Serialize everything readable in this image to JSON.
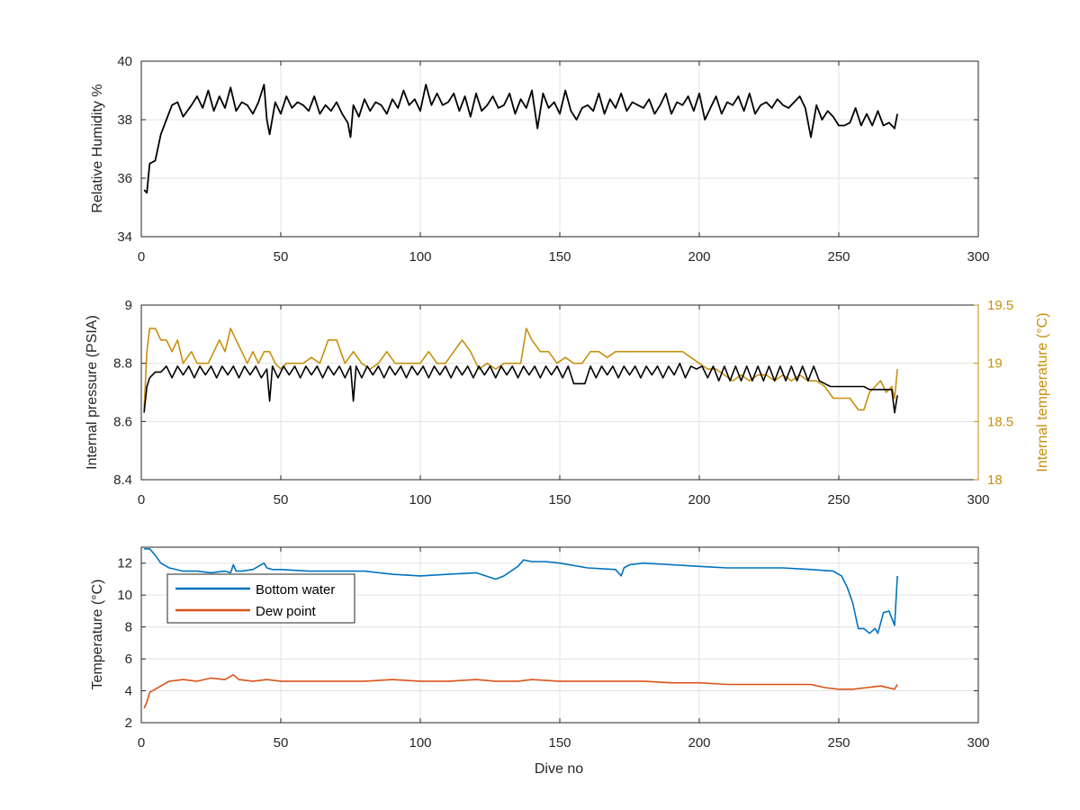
{
  "chart_data": [
    {
      "type": "line",
      "title": "",
      "xlabel": "",
      "ylabel": "Relative Humidity %",
      "xlim": [
        0,
        300
      ],
      "ylim": [
        34,
        40
      ],
      "xticks": [
        0,
        50,
        100,
        150,
        200,
        250,
        300
      ],
      "yticks": [
        34,
        36,
        38,
        40
      ],
      "grid": true,
      "series": [
        {
          "color": "#000000",
          "x": [
            1,
            2,
            3,
            5,
            7,
            9,
            11,
            13,
            15,
            18,
            20,
            22,
            24,
            26,
            28,
            30,
            32,
            34,
            36,
            38,
            40,
            42,
            44,
            45,
            46,
            48,
            50,
            52,
            54,
            56,
            58,
            60,
            62,
            64,
            66,
            68,
            70,
            72,
            74,
            75,
            76,
            78,
            80,
            82,
            84,
            86,
            88,
            90,
            92,
            94,
            96,
            98,
            100,
            102,
            104,
            106,
            108,
            110,
            112,
            114,
            116,
            118,
            120,
            122,
            124,
            126,
            128,
            130,
            132,
            134,
            136,
            138,
            140,
            142,
            144,
            146,
            148,
            150,
            152,
            154,
            156,
            158,
            160,
            162,
            164,
            166,
            168,
            170,
            172,
            174,
            176,
            178,
            180,
            182,
            184,
            186,
            188,
            190,
            192,
            194,
            196,
            198,
            200,
            202,
            204,
            206,
            208,
            210,
            212,
            214,
            216,
            218,
            220,
            222,
            224,
            226,
            228,
            230,
            232,
            234,
            236,
            238,
            240,
            242,
            244,
            246,
            248,
            250,
            252,
            254,
            256,
            258,
            260,
            262,
            264,
            266,
            268,
            270,
            271
          ],
          "y": [
            35.6,
            35.5,
            36.5,
            36.6,
            37.5,
            38.0,
            38.5,
            38.6,
            38.1,
            38.5,
            38.8,
            38.4,
            39.0,
            38.3,
            38.8,
            38.4,
            39.1,
            38.3,
            38.6,
            38.5,
            38.2,
            38.6,
            39.2,
            38.0,
            37.5,
            38.6,
            38.2,
            38.8,
            38.4,
            38.6,
            38.5,
            38.3,
            38.8,
            38.2,
            38.5,
            38.3,
            38.6,
            38.2,
            37.9,
            37.4,
            38.5,
            38.1,
            38.7,
            38.3,
            38.6,
            38.5,
            38.2,
            38.7,
            38.4,
            39.0,
            38.5,
            38.7,
            38.3,
            39.2,
            38.5,
            38.9,
            38.5,
            38.6,
            38.9,
            38.3,
            38.8,
            38.1,
            38.9,
            38.3,
            38.5,
            38.8,
            38.4,
            38.5,
            38.9,
            38.2,
            38.7,
            38.4,
            39.0,
            37.7,
            38.9,
            38.4,
            38.6,
            38.2,
            39.0,
            38.3,
            38.0,
            38.4,
            38.5,
            38.3,
            38.9,
            38.2,
            38.7,
            38.4,
            38.9,
            38.3,
            38.6,
            38.5,
            38.4,
            38.7,
            38.2,
            38.5,
            38.9,
            38.2,
            38.6,
            38.5,
            38.8,
            38.3,
            38.9,
            38.0,
            38.4,
            38.8,
            38.2,
            38.6,
            38.5,
            38.8,
            38.3,
            38.9,
            38.2,
            38.5,
            38.6,
            38.4,
            38.7,
            38.5,
            38.4,
            38.6,
            38.8,
            38.4,
            37.4,
            38.5,
            38.0,
            38.3,
            38.1,
            37.8,
            37.8,
            37.9,
            38.4,
            37.8,
            38.2,
            37.8,
            38.3,
            37.8,
            37.9,
            37.7,
            38.2
          ]
        }
      ]
    },
    {
      "type": "line",
      "title": "",
      "xlabel": "",
      "ylabel": "Internal pressure (PSIA)",
      "ylabel_right": "Internal temperature (°C)",
      "xlim": [
        0,
        300
      ],
      "ylim": [
        8.4,
        9
      ],
      "ylim_right": [
        18,
        19.5
      ],
      "xticks": [
        0,
        50,
        100,
        150,
        200,
        250,
        300
      ],
      "yticks": [
        8.4,
        8.6,
        8.8,
        9
      ],
      "yticks_right": [
        18,
        18.5,
        19,
        19.5
      ],
      "yticklabels_right": [
        "18",
        "18.5",
        "19",
        "19.5"
      ],
      "grid": true,
      "series": [
        {
          "axis": "right",
          "color": "#C7900E",
          "x": [
            1,
            2,
            3,
            5,
            7,
            9,
            11,
            13,
            15,
            18,
            20,
            22,
            24,
            26,
            28,
            30,
            32,
            34,
            36,
            38,
            40,
            42,
            44,
            46,
            48,
            50,
            52,
            55,
            58,
            61,
            64,
            67,
            70,
            73,
            76,
            79,
            82,
            85,
            88,
            91,
            94,
            97,
            100,
            103,
            106,
            109,
            112,
            115,
            118,
            121,
            124,
            127,
            130,
            133,
            136,
            138,
            140,
            143,
            146,
            149,
            152,
            155,
            158,
            161,
            164,
            167,
            170,
            173,
            176,
            179,
            182,
            185,
            188,
            191,
            194,
            197,
            200,
            203,
            206,
            209,
            212,
            215,
            218,
            221,
            224,
            227,
            230,
            233,
            236,
            239,
            242,
            245,
            248,
            251,
            254,
            257,
            259,
            261,
            263,
            265,
            267,
            269,
            270,
            271
          ],
          "y": [
            18.6,
            19.1,
            19.3,
            19.3,
            19.2,
            19.2,
            19.1,
            19.2,
            19.0,
            19.1,
            19.0,
            19.0,
            19.0,
            19.1,
            19.2,
            19.1,
            19.3,
            19.2,
            19.1,
            19.0,
            19.1,
            19.0,
            19.1,
            19.1,
            19.0,
            18.95,
            19.0,
            19.0,
            19.0,
            19.05,
            19.0,
            19.2,
            19.2,
            19.0,
            19.1,
            19.0,
            18.95,
            19.0,
            19.1,
            19.0,
            19.0,
            19.0,
            19.0,
            19.1,
            19.0,
            19.0,
            19.1,
            19.2,
            19.1,
            18.95,
            19.0,
            18.95,
            19.0,
            19.0,
            19.0,
            19.3,
            19.2,
            19.1,
            19.1,
            19.0,
            19.05,
            19.0,
            19.0,
            19.1,
            19.1,
            19.05,
            19.1,
            19.1,
            19.1,
            19.1,
            19.1,
            19.1,
            19.1,
            19.1,
            19.1,
            19.05,
            19.0,
            18.95,
            18.95,
            18.9,
            18.85,
            18.9,
            18.85,
            18.9,
            18.9,
            18.85,
            18.9,
            18.85,
            18.9,
            18.85,
            18.85,
            18.8,
            18.7,
            18.7,
            18.7,
            18.6,
            18.6,
            18.75,
            18.8,
            18.85,
            18.75,
            18.8,
            18.7,
            18.95
          ]
        },
        {
          "axis": "left",
          "color": "#000000",
          "x": [
            1,
            2,
            3,
            5,
            7,
            9,
            11,
            13,
            15,
            17,
            19,
            21,
            23,
            25,
            27,
            29,
            31,
            33,
            35,
            37,
            39,
            41,
            43,
            45,
            46,
            47,
            49,
            51,
            53,
            55,
            57,
            59,
            61,
            63,
            65,
            67,
            69,
            71,
            73,
            75,
            76,
            77,
            79,
            81,
            83,
            85,
            87,
            89,
            91,
            93,
            95,
            97,
            99,
            101,
            103,
            105,
            107,
            109,
            111,
            113,
            115,
            117,
            119,
            121,
            123,
            125,
            127,
            129,
            131,
            133,
            135,
            137,
            139,
            141,
            143,
            145,
            147,
            149,
            151,
            153,
            155,
            157,
            159,
            161,
            163,
            165,
            167,
            169,
            171,
            173,
            175,
            177,
            179,
            181,
            183,
            185,
            187,
            189,
            191,
            193,
            195,
            197,
            199,
            201,
            203,
            205,
            207,
            209,
            211,
            213,
            215,
            217,
            219,
            221,
            223,
            225,
            227,
            229,
            231,
            233,
            235,
            237,
            239,
            241,
            243,
            245,
            247,
            249,
            251,
            253,
            255,
            257,
            259,
            261,
            263,
            265,
            267,
            269,
            270,
            271
          ],
          "y": [
            8.63,
            8.72,
            8.75,
            8.77,
            8.77,
            8.79,
            8.75,
            8.79,
            8.76,
            8.79,
            8.75,
            8.79,
            8.76,
            8.79,
            8.75,
            8.79,
            8.76,
            8.79,
            8.75,
            8.79,
            8.76,
            8.79,
            8.75,
            8.78,
            8.67,
            8.79,
            8.75,
            8.79,
            8.76,
            8.79,
            8.75,
            8.79,
            8.76,
            8.79,
            8.75,
            8.79,
            8.76,
            8.79,
            8.75,
            8.79,
            8.67,
            8.79,
            8.75,
            8.79,
            8.76,
            8.79,
            8.75,
            8.79,
            8.76,
            8.79,
            8.75,
            8.79,
            8.76,
            8.79,
            8.75,
            8.79,
            8.76,
            8.79,
            8.75,
            8.79,
            8.76,
            8.79,
            8.75,
            8.79,
            8.76,
            8.79,
            8.75,
            8.79,
            8.76,
            8.79,
            8.75,
            8.79,
            8.76,
            8.79,
            8.75,
            8.79,
            8.76,
            8.79,
            8.75,
            8.79,
            8.73,
            8.73,
            8.73,
            8.79,
            8.75,
            8.79,
            8.76,
            8.79,
            8.75,
            8.79,
            8.76,
            8.79,
            8.75,
            8.79,
            8.76,
            8.79,
            8.75,
            8.79,
            8.76,
            8.8,
            8.75,
            8.79,
            8.78,
            8.79,
            8.75,
            8.79,
            8.74,
            8.79,
            8.74,
            8.79,
            8.74,
            8.79,
            8.74,
            8.79,
            8.74,
            8.79,
            8.74,
            8.79,
            8.74,
            8.79,
            8.74,
            8.79,
            8.74,
            8.79,
            8.74,
            8.73,
            8.72,
            8.72,
            8.72,
            8.72,
            8.72,
            8.72,
            8.72,
            8.71,
            8.71,
            8.71,
            8.71,
            8.71,
            8.63,
            8.69
          ]
        }
      ]
    },
    {
      "type": "line",
      "title": "",
      "xlabel": "Dive no",
      "ylabel": "Temperature (°C)",
      "xlim": [
        0,
        300
      ],
      "ylim": [
        2,
        13
      ],
      "xticks": [
        0,
        50,
        100,
        150,
        200,
        250,
        300
      ],
      "yticks": [
        2,
        4,
        6,
        8,
        10,
        12
      ],
      "grid": true,
      "legend": "top-left",
      "series": [
        {
          "name": "Bottom water",
          "color": "#0072BD",
          "x": [
            1,
            3,
            5,
            7,
            10,
            15,
            20,
            25,
            30,
            32,
            33,
            34,
            36,
            40,
            44,
            45,
            47,
            50,
            60,
            70,
            80,
            90,
            100,
            110,
            120,
            127,
            130,
            135,
            137,
            140,
            145,
            150,
            160,
            170,
            172,
            173,
            175,
            180,
            190,
            200,
            210,
            220,
            230,
            240,
            248,
            251,
            253,
            255,
            257,
            259,
            261,
            263,
            264,
            266,
            268,
            270,
            271
          ],
          "y": [
            12.9,
            12.9,
            12.5,
            12.0,
            11.7,
            11.5,
            11.5,
            11.4,
            11.5,
            11.4,
            11.9,
            11.5,
            11.5,
            11.6,
            12.0,
            11.7,
            11.6,
            11.6,
            11.5,
            11.5,
            11.5,
            11.3,
            11.2,
            11.3,
            11.4,
            11.0,
            11.2,
            11.8,
            12.2,
            12.1,
            12.1,
            12.0,
            11.7,
            11.6,
            11.2,
            11.7,
            11.9,
            12.0,
            11.9,
            11.8,
            11.7,
            11.7,
            11.7,
            11.6,
            11.5,
            11.2,
            10.5,
            9.5,
            7.9,
            7.9,
            7.6,
            7.9,
            7.6,
            8.9,
            9.0,
            8.1,
            11.2
          ]
        },
        {
          "name": "Dew point",
          "color": "#D95319",
          "x": [
            1,
            2,
            3,
            5,
            7,
            10,
            15,
            20,
            25,
            30,
            33,
            35,
            40,
            45,
            50,
            60,
            70,
            80,
            90,
            100,
            110,
            120,
            127,
            130,
            135,
            140,
            150,
            160,
            170,
            180,
            190,
            200,
            210,
            220,
            230,
            240,
            245,
            250,
            255,
            260,
            265,
            270,
            271
          ],
          "y": [
            2.9,
            3.3,
            3.9,
            4.1,
            4.3,
            4.6,
            4.7,
            4.6,
            4.8,
            4.7,
            5.0,
            4.7,
            4.6,
            4.7,
            4.6,
            4.6,
            4.6,
            4.6,
            4.7,
            4.6,
            4.6,
            4.7,
            4.6,
            4.6,
            4.6,
            4.7,
            4.6,
            4.6,
            4.6,
            4.6,
            4.5,
            4.5,
            4.4,
            4.4,
            4.4,
            4.4,
            4.2,
            4.1,
            4.1,
            4.2,
            4.3,
            4.1,
            4.4
          ]
        }
      ]
    }
  ]
}
